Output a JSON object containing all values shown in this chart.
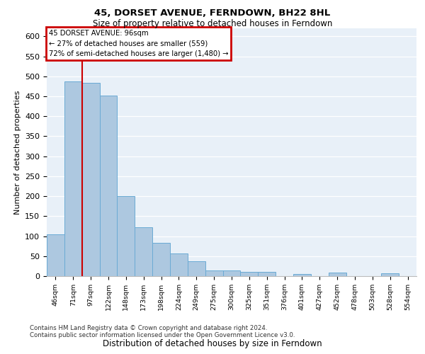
{
  "title1": "45, DORSET AVENUE, FERNDOWN, BH22 8HL",
  "title2": "Size of property relative to detached houses in Ferndown",
  "xlabel": "Distribution of detached houses by size in Ferndown",
  "ylabel": "Number of detached properties",
  "categories": [
    "46sqm",
    "71sqm",
    "97sqm",
    "122sqm",
    "148sqm",
    "173sqm",
    "198sqm",
    "224sqm",
    "249sqm",
    "275sqm",
    "300sqm",
    "325sqm",
    "351sqm",
    "376sqm",
    "401sqm",
    "427sqm",
    "452sqm",
    "478sqm",
    "503sqm",
    "528sqm",
    "554sqm"
  ],
  "values": [
    105,
    487,
    483,
    451,
    201,
    123,
    83,
    57,
    38,
    15,
    14,
    10,
    10,
    0,
    5,
    0,
    8,
    0,
    0,
    7,
    0
  ],
  "bar_color": "#adc8e0",
  "bar_edge_color": "#6aaad4",
  "annotation_title": "45 DORSET AVENUE: 96sqm",
  "annotation_line2": "← 27% of detached houses are smaller (559)",
  "annotation_line3": "72% of semi-detached houses are larger (1,480) →",
  "annotation_box_color": "#ffffff",
  "annotation_box_edge": "#cc0000",
  "vline_color": "#cc0000",
  "footer1": "Contains HM Land Registry data © Crown copyright and database right 2024.",
  "footer2": "Contains public sector information licensed under the Open Government Licence v3.0.",
  "ylim": [
    0,
    620
  ],
  "plot_bg_color": "#e8f0f8"
}
